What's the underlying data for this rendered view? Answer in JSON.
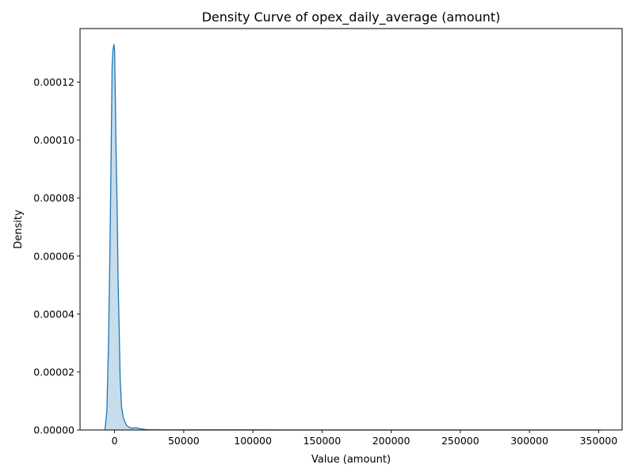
{
  "chart_data": {
    "type": "area",
    "title": "Density Curve of opex_daily_average (amount)",
    "xlabel": "Value (amount)",
    "ylabel": "Density",
    "xlim": [
      -25000,
      367000
    ],
    "ylim": [
      0,
      0.0001385
    ],
    "x_ticks": [
      0,
      50000,
      100000,
      150000,
      200000,
      250000,
      300000,
      350000
    ],
    "x_tick_labels": [
      "0",
      "50000",
      "100000",
      "150000",
      "200000",
      "250000",
      "300000",
      "350000"
    ],
    "y_ticks": [
      0,
      2e-05,
      4e-05,
      6e-05,
      8e-05,
      0.0001,
      0.00012
    ],
    "y_tick_labels": [
      "0.00000",
      "0.00002",
      "0.00004",
      "0.00006",
      "0.00008",
      "0.00010",
      "0.00012"
    ],
    "grid": false,
    "legend": "none",
    "colors": {
      "line": "#1f77b4",
      "fill": "#1f77b4",
      "fill_opacity": 0.25
    },
    "series": [
      {
        "x": [
          -7000,
          -5600,
          -4500,
          -3500,
          -2600,
          -1800,
          -1200,
          -500,
          0,
          500,
          1000,
          1900,
          2500,
          3300,
          4000,
          5000,
          6300,
          7700,
          8800,
          10600,
          13000,
          15500,
          18000,
          21000,
          24000,
          28000,
          35000,
          50000,
          100000,
          200000,
          300000,
          352000
        ],
        "y": [
          0,
          6.5e-06,
          2.8e-05,
          5.8e-05,
          9.2e-05,
          0.0001254,
          0.000131,
          0.000133,
          0.000131,
          0.000115,
          9.8e-05,
          7.5e-05,
          5.2e-05,
          3.5e-05,
          1.8e-05,
          8e-06,
          4.2e-06,
          2.5e-06,
          1.5e-06,
          9e-07,
          6e-07,
          8e-07,
          5e-07,
          2.5e-07,
          1e-07,
          5e-08,
          3e-08,
          2e-08,
          1e-08,
          5e-09,
          3e-09,
          0
        ]
      }
    ]
  }
}
